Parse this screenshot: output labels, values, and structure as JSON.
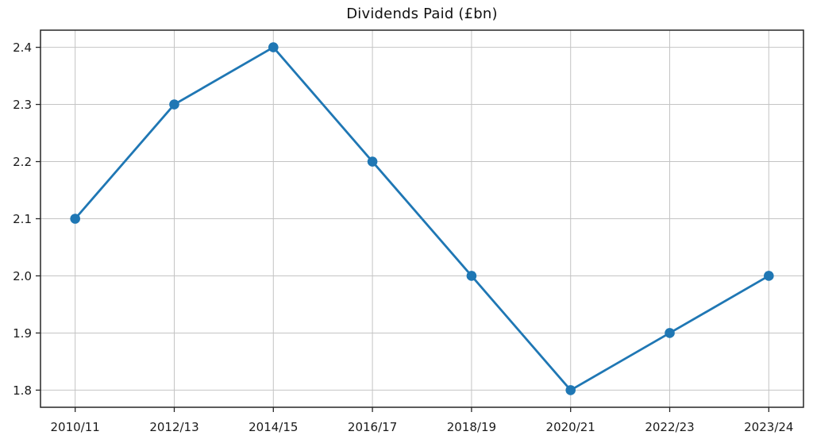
{
  "chart_data": {
    "type": "line",
    "title": "Dividends Paid (£bn)",
    "categories": [
      "2010/11",
      "2012/13",
      "2014/15",
      "2016/17",
      "2018/19",
      "2020/21",
      "2022/23",
      "2023/24"
    ],
    "values": [
      2.1,
      2.3,
      2.4,
      2.2,
      2.0,
      1.8,
      1.9,
      2.0
    ],
    "series_name": "Dividends Paid",
    "xlabel": "",
    "ylabel": "",
    "ytick_labels": [
      "1.8",
      "1.9",
      "2.0",
      "2.1",
      "2.2",
      "2.3",
      "2.4"
    ],
    "yticks": [
      1.8,
      1.9,
      2.0,
      2.1,
      2.2,
      2.3,
      2.4
    ],
    "ylim": [
      1.77,
      2.43
    ],
    "xlim": [
      -0.35,
      7.35
    ],
    "grid": true,
    "legend": false,
    "colors": {
      "line": "#1f77b4",
      "marker": "#1f77b4",
      "grid": "#c4c4c4",
      "spine": "#262626",
      "tick": "#262626",
      "text": "#1a1a1a",
      "background": "#ffffff"
    }
  }
}
